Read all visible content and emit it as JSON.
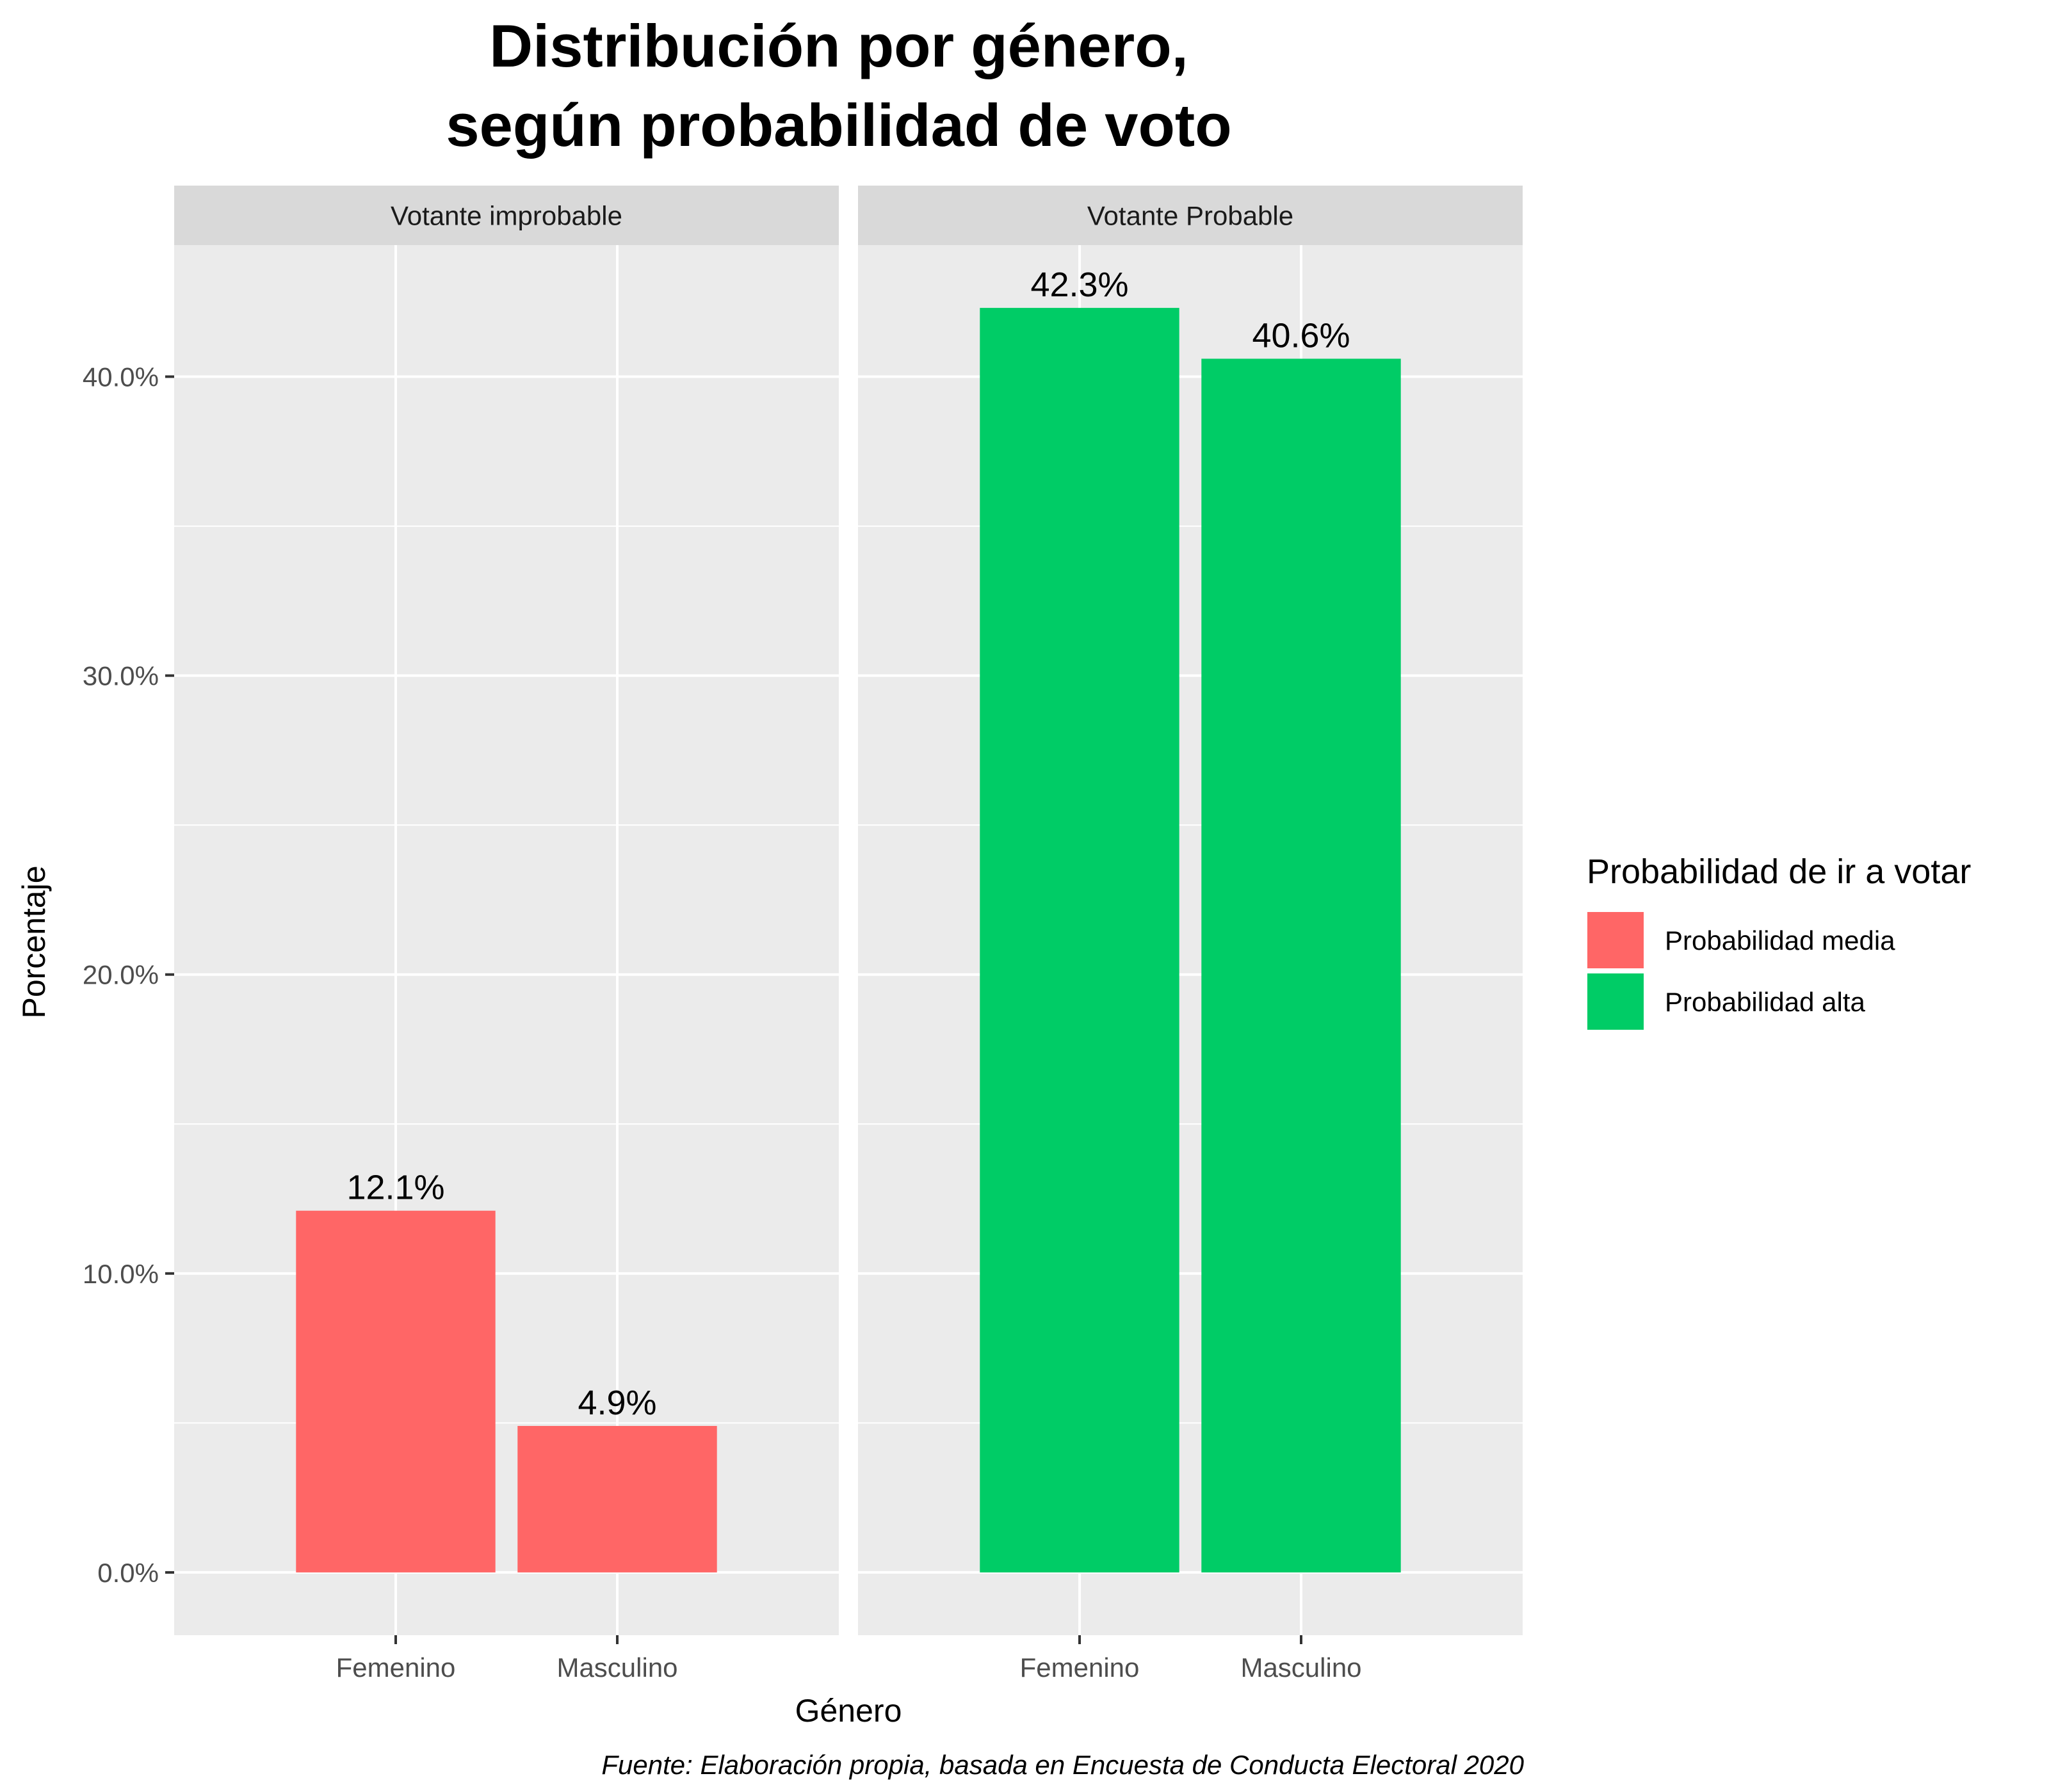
{
  "chart_data": {
    "type": "bar",
    "title_lines": [
      "Distribución por género,",
      "según probabilidad de voto"
    ],
    "xlabel": "Género",
    "ylabel": "Porcentaje",
    "caption": "Fuente: Elaboración propia, basada en Encuesta de Conducta Electoral 2020",
    "categories": [
      "Femenino",
      "Masculino"
    ],
    "ylim": [
      -2.1,
      44.4
    ],
    "y_ticks": [
      0,
      10,
      20,
      30,
      40
    ],
    "y_tick_labels": [
      "0.0%",
      "10.0%",
      "20.0%",
      "30.0%",
      "40.0%"
    ],
    "grid": true,
    "facets": [
      {
        "label": "Votante improbable",
        "bars": [
          {
            "category": "Femenino",
            "value": 12.1,
            "label": "12.1%",
            "series": "Probabilidad media"
          },
          {
            "category": "Masculino",
            "value": 4.9,
            "label": "4.9%",
            "series": "Probabilidad media"
          }
        ]
      },
      {
        "label": "Votante Probable",
        "bars": [
          {
            "category": "Femenino",
            "value": 42.3,
            "label": "42.3%",
            "series": "Probabilidad alta"
          },
          {
            "category": "Masculino",
            "value": 40.6,
            "label": "40.6%",
            "series": "Probabilidad alta"
          }
        ]
      }
    ],
    "legend": {
      "title": "Probabilidad de ir a votar",
      "placement": "right",
      "entries": [
        {
          "name": "Probabilidad media",
          "color": "#FF6666"
        },
        {
          "name": "Probabilidad alta",
          "color": "#00CC66"
        }
      ]
    },
    "colors": {
      "panel_background": "#EBEBEB",
      "strip_background": "#D9D9D9",
      "grid": "#FFFFFF",
      "tick": "#333333"
    }
  }
}
